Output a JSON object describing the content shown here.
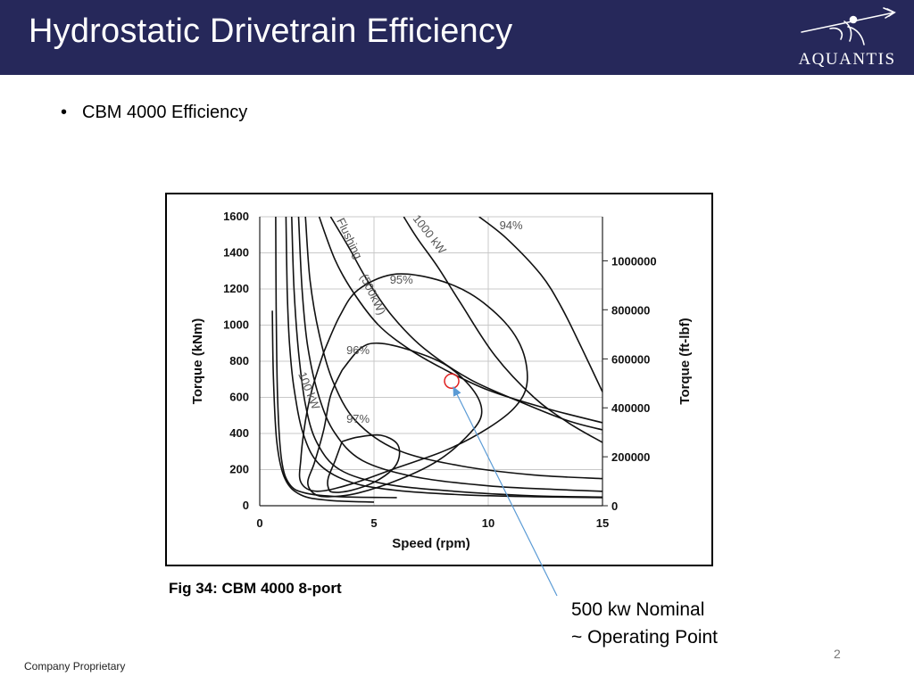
{
  "slide": {
    "title": "Hydrostatic Drivetrain Efficiency",
    "logo_text": "AQUANTIS",
    "bullet": "CBM 4000 Efficiency",
    "figure_caption": "Fig 34: CBM 4000 8-port",
    "callout_line1": "500 kw Nominal",
    "callout_line2": "~ Operating Point",
    "footer": "Company Proprietary",
    "page_number": "2"
  },
  "colors": {
    "title_bar": "#26285a",
    "contour_line": "#111111",
    "grid": "#c8c8c8",
    "marker": "#e02020",
    "arrow": "#5b9bd5"
  },
  "chart_data": {
    "type": "line",
    "xlabel": "Speed (rpm)",
    "ylabel": "Torque (kNm)",
    "y2label": "Torque (ft-lbf)",
    "xlim": [
      0,
      15
    ],
    "ylim": [
      0,
      1600
    ],
    "x_ticks": [
      0,
      5,
      10,
      15
    ],
    "y_ticks": [
      0,
      200,
      400,
      600,
      800,
      1000,
      1200,
      1400,
      1600
    ],
    "y2_ticks": [
      {
        "label": "0",
        "kNm": 0
      },
      {
        "label": "200000",
        "kNm": 271
      },
      {
        "label": "400000",
        "kNm": 542
      },
      {
        "label": "600000",
        "kNm": 813
      },
      {
        "label": "800000",
        "kNm": 1085
      },
      {
        "label": "1000000",
        "kNm": 1356
      }
    ],
    "grid": true,
    "efficiency_contours": [
      {
        "label": "97%",
        "label_at": [
          4.3,
          460
        ],
        "points": [
          [
            3.6,
            355
          ],
          [
            3.3,
            250
          ],
          [
            3.0,
            155
          ],
          [
            3.0,
            100
          ],
          [
            3.2,
            75
          ],
          [
            4.0,
            85
          ],
          [
            5.0,
            130
          ],
          [
            5.8,
            200
          ],
          [
            6.1,
            270
          ],
          [
            6.0,
            345
          ],
          [
            5.3,
            390
          ],
          [
            4.3,
            380
          ],
          [
            3.6,
            355
          ]
        ]
      },
      {
        "label": "96%",
        "label_at": [
          4.3,
          840
        ],
        "points": [
          [
            3.6,
            750
          ],
          [
            4.4,
            870
          ],
          [
            5.2,
            900
          ],
          [
            6.6,
            860
          ],
          [
            8.2,
            775
          ],
          [
            9.4,
            630
          ],
          [
            9.7,
            500
          ],
          [
            9.0,
            375
          ],
          [
            7.8,
            250
          ],
          [
            6.2,
            150
          ],
          [
            4.3,
            70
          ],
          [
            3.0,
            50
          ],
          [
            2.4,
            65
          ],
          [
            2.1,
            130
          ],
          [
            2.4,
            240
          ],
          [
            2.8,
            420
          ],
          [
            3.1,
            610
          ],
          [
            3.6,
            750
          ]
        ]
      },
      {
        "label": "95%",
        "label_at": [
          6.2,
          1230
        ],
        "points": [
          [
            2.8,
            850
          ],
          [
            3.5,
            1050
          ],
          [
            4.3,
            1195
          ],
          [
            5.8,
            1280
          ],
          [
            7.5,
            1260
          ],
          [
            9.2,
            1175
          ],
          [
            10.7,
            1020
          ],
          [
            11.5,
            860
          ],
          [
            11.7,
            680
          ],
          [
            11.2,
            550
          ],
          [
            10.0,
            430
          ],
          [
            8.2,
            310
          ],
          [
            6.0,
            210
          ],
          [
            4.0,
            120
          ],
          [
            2.5,
            80
          ],
          [
            1.8,
            130
          ],
          [
            1.8,
            260
          ],
          [
            2.0,
            470
          ],
          [
            2.3,
            650
          ],
          [
            2.8,
            850
          ]
        ]
      },
      {
        "label": "94%",
        "label_at": [
          11.0,
          1530
        ],
        "points": [
          [
            9.6,
            1600
          ],
          [
            10.8,
            1480
          ],
          [
            12.3,
            1280
          ],
          [
            13.2,
            1100
          ],
          [
            14.1,
            870
          ],
          [
            15.0,
            630
          ]
        ]
      }
    ],
    "power_curves": [
      {
        "label": "100 kW",
        "label_at": [
          2.2,
          560
        ],
        "points": [
          [
            1.15,
            1600
          ],
          [
            1.2,
            1200
          ],
          [
            1.3,
            900
          ],
          [
            1.5,
            650
          ],
          [
            1.9,
            400
          ],
          [
            2.6,
            230
          ],
          [
            4.0,
            130
          ],
          [
            6.0,
            85
          ],
          [
            9.0,
            60
          ],
          [
            12.0,
            50
          ],
          [
            15.0,
            45
          ]
        ]
      },
      {
        "label": "500 kW",
        "label_at": [
          4.5,
          1200
        ],
        "points": [
          [
            2.6,
            1600
          ],
          [
            3.3,
            1360
          ],
          [
            4.1,
            1180
          ],
          [
            5.2,
            1000
          ],
          [
            6.5,
            870
          ],
          [
            8.0,
            760
          ],
          [
            10.0,
            640
          ],
          [
            12.5,
            540
          ],
          [
            15.0,
            460
          ]
        ]
      },
      {
        "label": "1000 kW",
        "label_at": [
          7.3,
          1450
        ],
        "points": [
          [
            6.3,
            1600
          ],
          [
            6.9,
            1480
          ],
          [
            7.8,
            1320
          ],
          [
            8.8,
            1120
          ],
          [
            10.3,
            830
          ],
          [
            12.0,
            600
          ],
          [
            13.5,
            460
          ],
          [
            15.0,
            350
          ]
        ]
      }
    ],
    "flushing_curve": {
      "label": "Flushing",
      "label_at": [
        3.6,
        1450
      ],
      "points": [
        [
          3.1,
          1600
        ],
        [
          3.9,
          1430
        ],
        [
          4.7,
          1250
        ],
        [
          5.8,
          1050
        ],
        [
          7.2,
          870
        ],
        [
          9.2,
          700
        ],
        [
          11.5,
          570
        ],
        [
          13.5,
          470
        ],
        [
          15.0,
          420
        ]
      ]
    },
    "extra_curves": [
      {
        "points": [
          [
            0.7,
            1600
          ],
          [
            0.72,
            1100
          ],
          [
            0.78,
            600
          ],
          [
            0.95,
            260
          ],
          [
            1.3,
            120
          ],
          [
            2.0,
            70
          ],
          [
            3.5,
            50
          ],
          [
            6.0,
            45
          ]
        ]
      },
      {
        "points": [
          [
            1.4,
            1600
          ],
          [
            1.5,
            1200
          ],
          [
            1.7,
            850
          ],
          [
            2.0,
            560
          ],
          [
            2.5,
            350
          ],
          [
            3.5,
            200
          ],
          [
            5.5,
            120
          ],
          [
            8.5,
            80
          ],
          [
            12.0,
            55
          ],
          [
            15.0,
            48
          ]
        ]
      },
      {
        "points": [
          [
            1.7,
            1600
          ],
          [
            1.85,
            1200
          ],
          [
            2.1,
            880
          ],
          [
            2.6,
            600
          ],
          [
            3.3,
            400
          ],
          [
            4.5,
            250
          ],
          [
            6.8,
            160
          ],
          [
            10.0,
            110
          ],
          [
            13.0,
            90
          ],
          [
            15.0,
            80
          ]
        ]
      },
      {
        "points": [
          [
            2.0,
            1600
          ],
          [
            2.2,
            1250
          ],
          [
            2.6,
            950
          ],
          [
            3.2,
            690
          ],
          [
            4.2,
            470
          ],
          [
            6.0,
            310
          ],
          [
            8.8,
            220
          ],
          [
            12.0,
            170
          ],
          [
            15.0,
            150
          ]
        ]
      },
      {
        "points": [
          [
            0.55,
            1080
          ],
          [
            0.6,
            700
          ],
          [
            0.75,
            350
          ],
          [
            1.1,
            150
          ],
          [
            1.8,
            60
          ],
          [
            3.0,
            30
          ],
          [
            5.0,
            20
          ]
        ]
      }
    ],
    "annotations": [
      {
        "text": "Flushing",
        "type": "curve-label"
      },
      {
        "text": "(500kW)",
        "type": "curve-label"
      },
      {
        "text": "1000 kW",
        "type": "curve-label"
      },
      {
        "text": "100 kW",
        "type": "curve-label"
      }
    ],
    "operating_point": {
      "x": 8.4,
      "y": 690,
      "label": "500 kw Nominal ~ Operating Point"
    }
  }
}
